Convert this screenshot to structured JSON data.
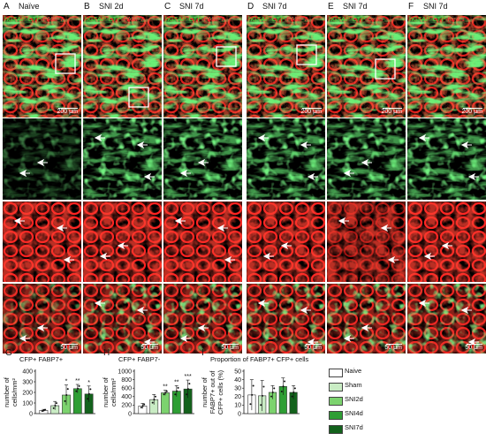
{
  "panels": {
    "A": {
      "letter": "A",
      "title": "Naïve",
      "label_green": "hGFAP-CFP",
      "label_red": "FABP7",
      "scale_top": "200 μm",
      "scale_bottom": "50 μm"
    },
    "B": {
      "letter": "B",
      "title": "SNI 2d",
      "label_green": "hGFAP-CFP",
      "label_red": "FABP7",
      "scale_top": "",
      "scale_bottom": "50 μm"
    },
    "C": {
      "letter": "C",
      "title": "SNI 7d",
      "label_green": "hGFAP-CFP",
      "label_red": "FABP7",
      "scale_top": "",
      "scale_bottom": "50 μm"
    },
    "D": {
      "letter": "D",
      "title": "SNI 7d",
      "label_green": "hGFAP-CFP",
      "label_red": "FABP7",
      "scale_top": "200 μm",
      "scale_bottom": "50 μm"
    },
    "E": {
      "letter": "E",
      "title": "SNI 7d",
      "label_green": "hGFAP-CFP",
      "label_red": "Cx43",
      "scale_top": "200 μm",
      "scale_bottom": "50 μm"
    },
    "F": {
      "letter": "F",
      "title": "SNI 7d",
      "label_green": "hGFAP-CFP",
      "label_red": "Kir4.1",
      "scale_top": "200 μm",
      "scale_bottom": "50 μm"
    }
  },
  "graph_labels": {
    "G": "G",
    "H": "H",
    "I": "I"
  },
  "legend": [
    {
      "label": "Naive",
      "color": "#ffffff"
    },
    {
      "label": "Sham",
      "color": "#c9ecc4"
    },
    {
      "label": "SNI2d",
      "color": "#7cd36e"
    },
    {
      "label": "SNI4d",
      "color": "#2e9e34"
    },
    {
      "label": "SNI7d",
      "color": "#13621c"
    }
  ],
  "chart_data": [
    {
      "type": "bar",
      "title": "CFP+ FABP7+",
      "ylabel": "number of cells/mm²",
      "ylim": [
        0,
        400
      ],
      "yticks": [
        "0",
        "100",
        "200",
        "300",
        "400"
      ],
      "categories": [
        "Naive",
        "Sham",
        "SNI2d",
        "SNI4d",
        "SNI7d"
      ],
      "values": [
        30,
        75,
        175,
        235,
        185
      ],
      "errors": [
        10,
        40,
        95,
        40,
        75
      ],
      "significance": [
        "",
        "",
        "*",
        "**",
        "*"
      ]
    },
    {
      "type": "bar",
      "title": "CFP+ FABP7-",
      "ylabel": "number of cells/mm²",
      "ylim": [
        0,
        1000
      ],
      "yticks": [
        "0",
        "200",
        "400",
        "600",
        "800",
        "1000"
      ],
      "categories": [
        "Naive",
        "Sham",
        "SNI2d",
        "SNI4d",
        "SNI7d"
      ],
      "values": [
        180,
        330,
        490,
        530,
        580
      ],
      "errors": [
        60,
        120,
        60,
        130,
        210
      ],
      "significance": [
        "",
        "",
        "**",
        "**",
        "***"
      ]
    },
    {
      "type": "bar",
      "title": "Proportion of FABP7+ CFP+ cells",
      "ylabel": "FABP7+ out of CFP+ cells (%)",
      "ylabel_lines": [
        "number of",
        "FABP7+ out of",
        "CFP+ cells (%)"
      ],
      "ylim": [
        0,
        50
      ],
      "yticks": [
        "0",
        "10",
        "20",
        "30",
        "40",
        "50"
      ],
      "categories": [
        "Naive",
        "Sham",
        "SNI2d",
        "SNI4d",
        "SNI7d"
      ],
      "values": [
        22,
        21,
        25,
        32,
        25
      ],
      "errors": [
        18,
        18,
        8,
        10,
        8
      ],
      "significance": [
        "",
        "",
        "",
        "",
        ""
      ]
    }
  ],
  "ylabels": {
    "G": [
      "number of",
      "cells/mm²"
    ],
    "H": [
      "number of",
      "cells/mm²"
    ],
    "I": [
      "number of",
      "FABP7+ out of",
      "CFP+ cells (%)"
    ]
  }
}
